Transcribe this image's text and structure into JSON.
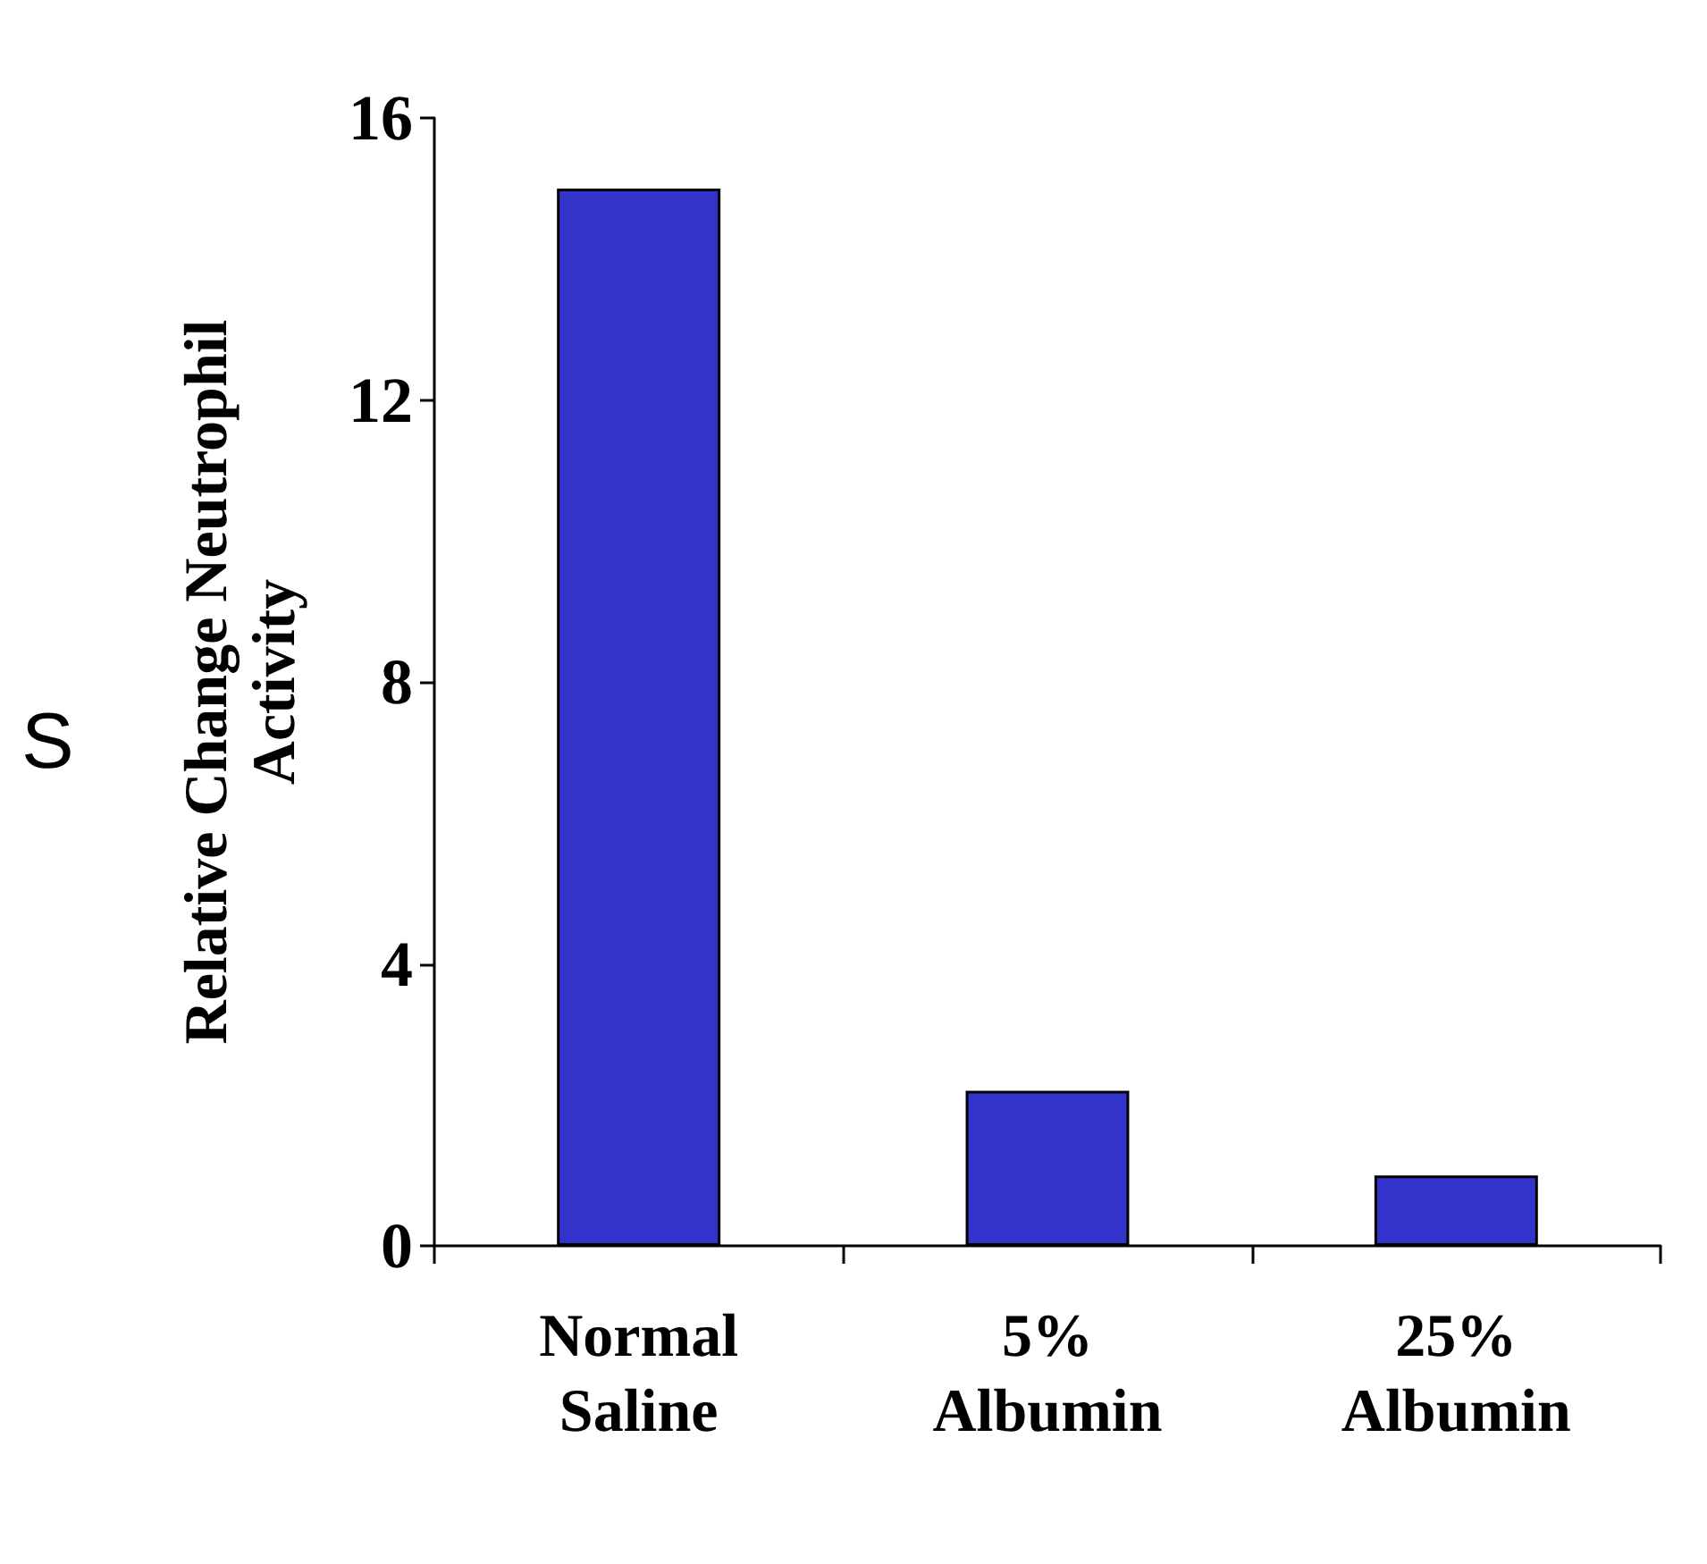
{
  "chart_data": {
    "type": "bar",
    "ylabel": "Relative Change Neutrophil\nActivity",
    "categories": [
      "Normal\nSaline",
      "5%\nAlbumin",
      "25%\nAlbumin"
    ],
    "values": [
      15,
      2.2,
      1
    ],
    "color": "#3333cc",
    "ylim": [
      0,
      16
    ],
    "yticks": [
      0,
      4,
      8,
      12,
      16
    ],
    "annotations": [
      "S"
    ]
  }
}
